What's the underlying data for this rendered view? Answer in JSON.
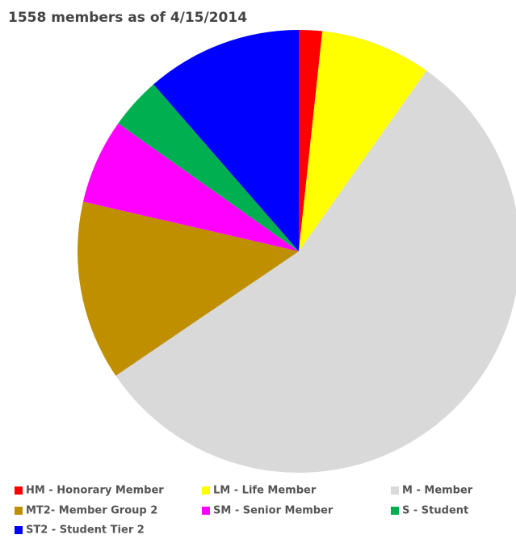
{
  "chart_data": {
    "type": "pie",
    "title": "1558 members as of 4/15/2014",
    "categories": [
      "HM - Honorary Member",
      "LM - Life Member",
      "M - Member",
      "MT2- Member Group 2",
      "SM - Senior Member",
      "S - Student",
      "ST2 - Student Tier 2"
    ],
    "values": [
      1.7,
      8.1,
      55.7,
      13.1,
      6.2,
      3.8,
      11.4
    ],
    "colors": [
      "#ff0000",
      "#ffff00",
      "#d9d9d9",
      "#bf8f00",
      "#ff00ff",
      "#00b050",
      "#0000ff"
    ],
    "legend": "bottom"
  }
}
